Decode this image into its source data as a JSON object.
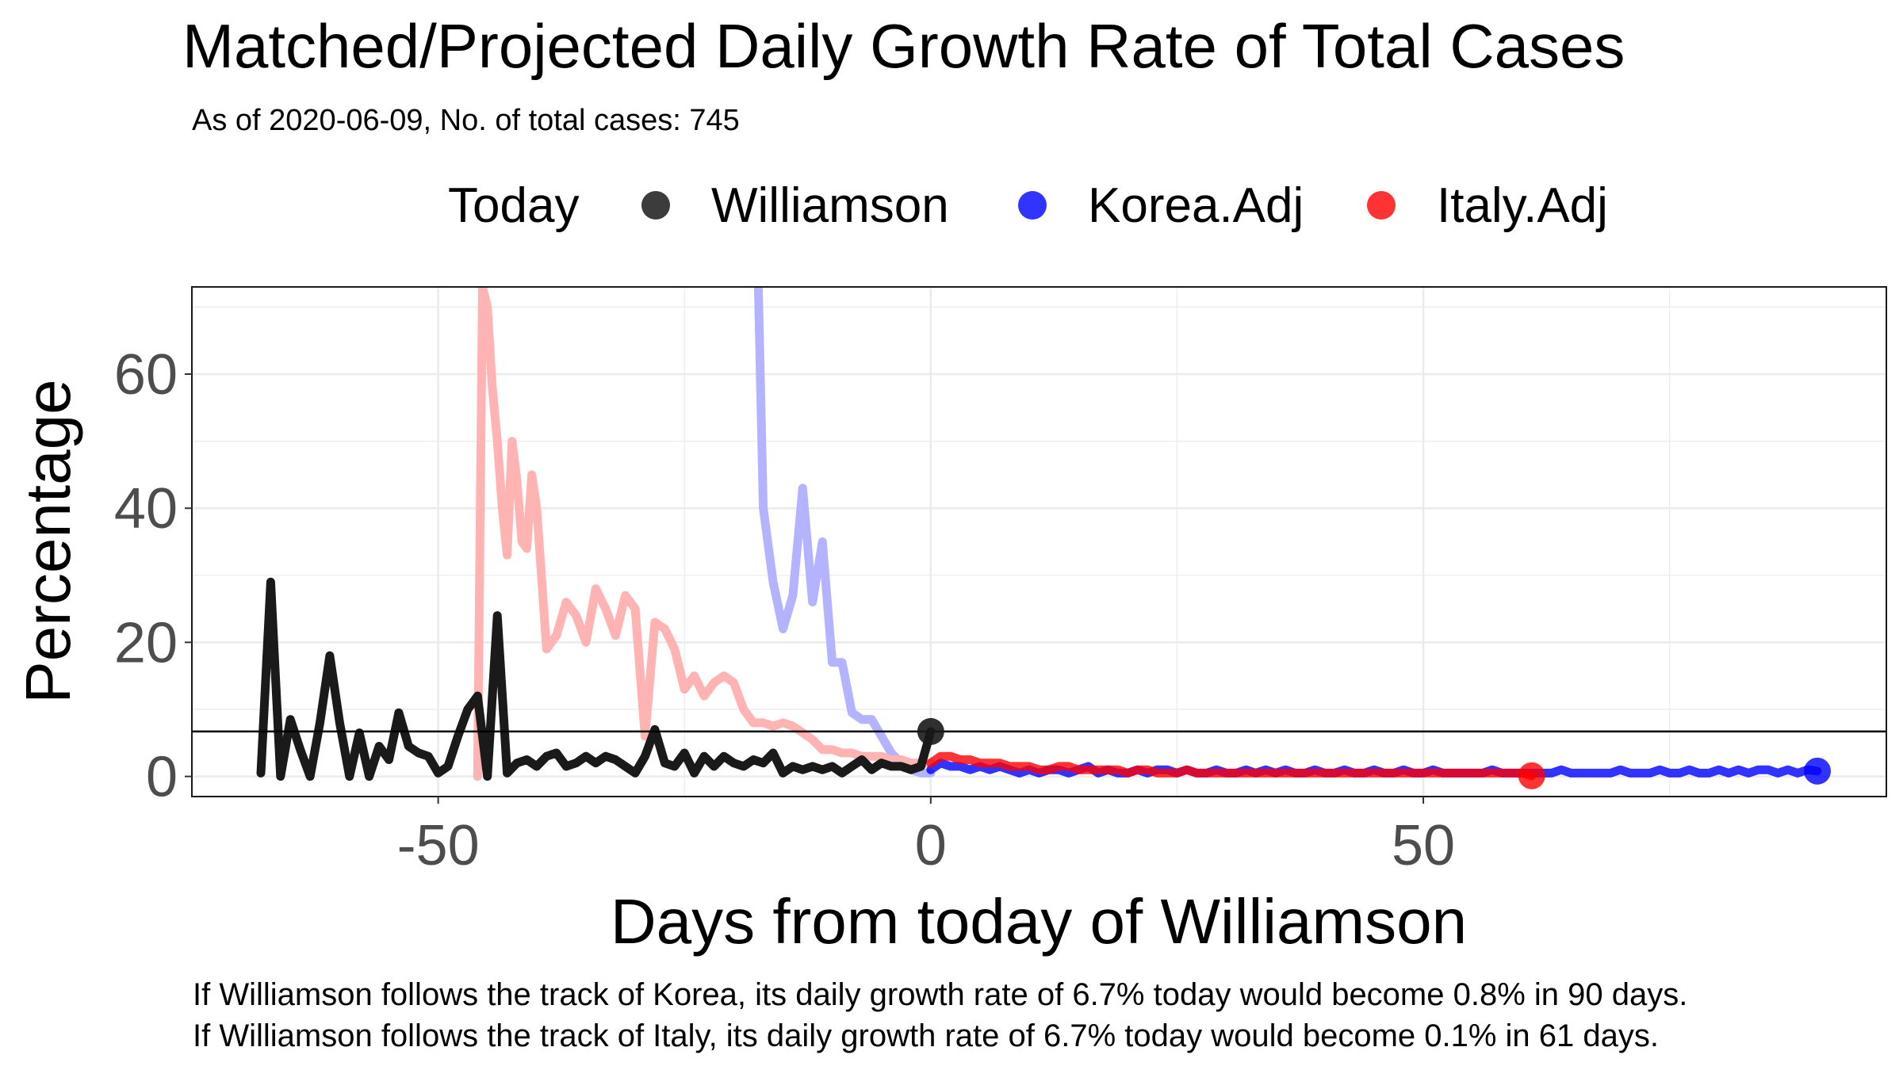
{
  "chart_data": {
    "type": "line",
    "title": "Matched/Projected Daily Growth Rate of Total Cases",
    "subtitle": "As of 2020-06-09, No. of total cases: 745",
    "xlabel": "Days from today of Williamson",
    "ylabel": "Percentage",
    "xlim": [
      -75,
      97
    ],
    "ylim": [
      -3,
      73
    ],
    "x_ticks": [
      -50,
      0,
      50
    ],
    "y_ticks": [
      0,
      20,
      40,
      60
    ],
    "grid": true,
    "legend": {
      "title": "Today",
      "placement": "top",
      "entries": [
        {
          "label": "Williamson",
          "color": "#1a1a1a"
        },
        {
          "label": "Korea.Adj",
          "color": "#0000ff"
        },
        {
          "label": "Italy.Adj",
          "color": "#ff0000"
        }
      ]
    },
    "today_rate": 6.7,
    "today_point": {
      "x": 0,
      "y": 6.7
    },
    "series": [
      {
        "name": "Williamson",
        "color": "#1a1a1a",
        "x": [
          -68,
          -67,
          -66,
          -65,
          -64,
          -63,
          -62,
          -61,
          -60,
          -59,
          -58,
          -57,
          -56,
          -55,
          -54,
          -53,
          -52,
          -51,
          -50,
          -49,
          -48,
          -47,
          -46,
          -45,
          -44,
          -43,
          -42,
          -41,
          -40,
          -39,
          -38,
          -37,
          -36,
          -35,
          -34,
          -33,
          -32,
          -31,
          -30,
          -29,
          -28,
          -27,
          -26,
          -25,
          -24,
          -23,
          -22,
          -21,
          -20,
          -19,
          -18,
          -17,
          -16,
          -15,
          -14,
          -13,
          -12,
          -11,
          -10,
          -9,
          -8,
          -7,
          -6,
          -5,
          -4,
          -3,
          -2,
          -1,
          0
        ],
        "y": [
          0.5,
          29,
          0,
          8.5,
          4,
          0,
          8,
          18,
          8,
          0,
          6.5,
          0,
          4.5,
          2.5,
          9.5,
          4.5,
          3.5,
          3,
          0.5,
          1.5,
          6,
          10,
          12,
          0,
          24,
          0.5,
          2,
          2.5,
          1.5,
          3,
          3.5,
          1.5,
          2,
          3,
          2,
          3,
          2.5,
          1.5,
          0.5,
          3,
          7,
          2,
          1.5,
          3.5,
          0.5,
          3,
          1.5,
          3,
          2,
          1.5,
          2.5,
          2,
          3.5,
          0.5,
          1.5,
          1,
          1.5,
          1,
          1.5,
          0.5,
          1.5,
          2.5,
          1,
          2,
          1.5,
          1.5,
          1,
          1.5,
          6.7
        ]
      },
      {
        "name": "Korea.Adj",
        "color": "#0000ff",
        "history_x": [
          -17.5,
          -17,
          -16,
          -15,
          -14,
          -13,
          -12,
          -11,
          -10,
          -9,
          -8,
          -7,
          -6,
          -5,
          -4,
          -3,
          -2,
          -1,
          0
        ],
        "history_y": [
          73,
          40,
          29,
          22,
          27,
          43,
          26,
          35,
          17,
          17,
          9.5,
          8.5,
          8.5,
          6,
          3.5,
          2,
          1,
          0.5,
          0.5
        ],
        "projection_x": [
          0,
          1,
          2,
          3,
          4,
          5,
          6,
          7,
          8,
          9,
          10,
          11,
          12,
          13,
          14,
          15,
          16,
          17,
          18,
          19,
          20,
          21,
          22,
          23,
          24,
          25,
          26,
          27,
          28,
          29,
          30,
          31,
          32,
          33,
          34,
          35,
          36,
          37,
          38,
          39,
          40,
          41,
          42,
          43,
          44,
          45,
          46,
          47,
          48,
          49,
          50,
          51,
          52,
          53,
          54,
          55,
          56,
          57,
          58,
          59,
          60,
          61,
          62,
          63,
          64,
          65,
          66,
          67,
          68,
          69,
          70,
          71,
          72,
          73,
          74,
          75,
          76,
          77,
          78,
          79,
          80,
          81,
          82,
          83,
          84,
          85,
          86,
          87,
          88,
          89,
          90
        ],
        "projection_y": [
          1,
          2,
          1.5,
          1.5,
          1,
          1.5,
          1,
          1.5,
          1,
          0.5,
          1,
          0.5,
          1,
          1,
          0.5,
          1,
          1.5,
          0.5,
          1,
          0.5,
          0.5,
          1,
          0.5,
          1,
          1,
          0.5,
          1,
          0.5,
          0.5,
          1,
          0.5,
          0.5,
          1,
          0.5,
          1,
          0.5,
          1,
          0.5,
          0.5,
          1,
          0.5,
          0.5,
          1,
          0.5,
          0.5,
          1,
          0.5,
          0.5,
          1,
          0.5,
          0.5,
          1,
          0.5,
          0.5,
          0.5,
          0.5,
          0.5,
          1,
          0.5,
          0.5,
          0.5,
          0.5,
          0.5,
          0.5,
          1,
          0.5,
          0.5,
          0.5,
          0.5,
          0.5,
          1,
          0.5,
          0.5,
          0.5,
          1,
          0.5,
          0.5,
          1,
          0.5,
          0.5,
          1,
          0.5,
          1,
          0.5,
          1,
          1,
          0.5,
          1,
          0.5,
          1,
          0.8
        ]
      },
      {
        "name": "Italy.Adj",
        "color": "#ff0000",
        "history_x": [
          -46,
          -45.5,
          -45,
          -44.5,
          -44,
          -43.5,
          -43,
          -42.5,
          -42,
          -41.5,
          -41,
          -40.5,
          -40,
          -39,
          -38,
          -37,
          -36,
          -35,
          -34,
          -33,
          -32,
          -31,
          -30,
          -29,
          -28,
          -27,
          -26,
          -25,
          -24,
          -23,
          -22,
          -21,
          -20,
          -19,
          -18,
          -17,
          -16,
          -15,
          -14,
          -13,
          -12,
          -11,
          -10,
          -9,
          -8,
          -7,
          -6,
          -5,
          -4,
          -3,
          -2,
          -1,
          0
        ],
        "history_y": [
          0,
          73,
          70,
          58,
          50,
          40,
          33,
          50,
          44,
          35,
          34,
          45,
          40,
          19,
          21,
          26,
          24,
          20,
          28,
          25,
          21,
          27,
          25,
          6,
          23,
          22,
          19,
          13,
          15,
          12,
          14,
          15,
          14,
          10,
          8,
          8,
          7.5,
          8,
          7.5,
          6.5,
          5.5,
          4,
          4,
          3.5,
          3.5,
          3,
          3,
          3,
          2.5,
          2.5,
          2,
          2,
          2
        ],
        "projection_x": [
          0,
          1,
          2,
          3,
          4,
          5,
          6,
          7,
          8,
          9,
          10,
          11,
          12,
          13,
          14,
          15,
          16,
          17,
          18,
          19,
          20,
          21,
          22,
          23,
          24,
          25,
          26,
          27,
          28,
          29,
          30,
          31,
          32,
          33,
          34,
          35,
          36,
          37,
          38,
          39,
          40,
          41,
          42,
          43,
          44,
          45,
          46,
          47,
          48,
          49,
          50,
          51,
          52,
          53,
          54,
          55,
          56,
          57,
          58,
          59,
          60,
          61
        ],
        "projection_y": [
          2,
          3,
          3,
          2.5,
          2.5,
          2,
          2,
          2,
          1.5,
          1.5,
          1.5,
          1,
          1,
          1.5,
          1.5,
          1,
          1,
          1,
          1,
          1,
          0.5,
          1,
          1,
          0.5,
          0.5,
          0.5,
          1,
          0.5,
          0.5,
          0.5,
          0.5,
          0.5,
          0.5,
          0.5,
          0.5,
          0.5,
          0.5,
          0.5,
          0.5,
          0.5,
          0.5,
          0.5,
          0.5,
          0.5,
          0.5,
          0.5,
          0.5,
          0.5,
          0.5,
          0.5,
          0.5,
          0.5,
          0.5,
          0.5,
          0.5,
          0.5,
          0.5,
          0.5,
          0.5,
          0.5,
          0.5,
          0.1
        ]
      }
    ],
    "footnotes": [
      "If Williamson follows the track of Korea, its daily growth rate of 6.7% today would become 0.8% in 90 days.",
      "If Williamson follows the track of Italy, its daily growth rate of 6.7% today would become 0.1% in 61 days."
    ]
  }
}
